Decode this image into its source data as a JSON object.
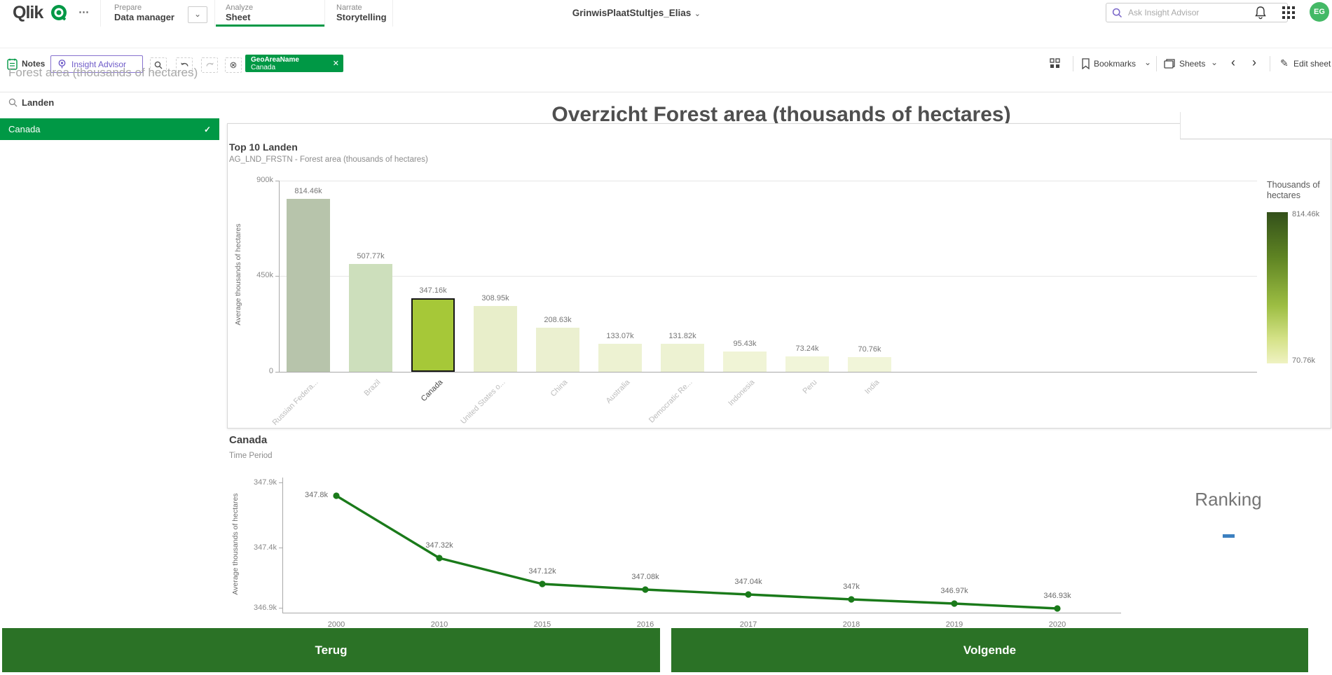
{
  "topbar": {
    "logo": "Qlik",
    "nav": [
      {
        "section": "Prepare",
        "item": "Data manager"
      },
      {
        "section": "Analyze",
        "item": "Sheet"
      },
      {
        "section": "Narrate",
        "item": "Storytelling"
      }
    ],
    "app_title": "GrinwisPlaatStultjes_Elias",
    "search_placeholder": "Ask Insight Advisor",
    "avatar_initials": "EG"
  },
  "toolbar": {
    "notes": "Notes",
    "insight_advisor": "Insight Advisor",
    "chip": {
      "field": "GeoAreaName",
      "value": "Canada"
    },
    "bookmarks": "Bookmarks",
    "sheets": "Sheets",
    "edit_sheet": "Edit sheet"
  },
  "icons": {
    "more": "⋯",
    "chevron_down": "⌄",
    "chevron_left": "‹",
    "chevron_right": "›",
    "close": "✕",
    "check": "✓",
    "clear": "⊗",
    "pencil": "✎"
  },
  "page_title": "Forest area (thousands of hectares)",
  "sheet_title": "Overzicht Forest area (thousands of hectares)",
  "sidebar": {
    "filter_label": "Landen",
    "selected_value": "Canada"
  },
  "chart_data": [
    {
      "type": "bar",
      "title": "Top 10 Landen",
      "subtitle": "AG_LND_FRSTN - Forest area (thousands of hectares)",
      "ylabel": "Average thousands of hectares",
      "ylim": [
        0,
        900000
      ],
      "yticks": [
        "900k",
        "450k",
        "0"
      ],
      "categories": [
        "Russian Federa...",
        "Brazil",
        "Canada",
        "United States o...",
        "China",
        "Australia",
        "Democratic Re...",
        "Indonesia",
        "Peru",
        "India"
      ],
      "values": [
        814460,
        507770,
        347160,
        308950,
        208630,
        133070,
        131820,
        95430,
        73240,
        70760
      ],
      "labels": [
        "814.46k",
        "507.77k",
        "347.16k",
        "308.95k",
        "208.63k",
        "133.07k",
        "131.82k",
        "95.43k",
        "73.24k",
        "70.76k"
      ],
      "selected_index": 2,
      "bar_colors": [
        "#b7c4ab",
        "#cddfbc",
        "#a6c838",
        "#e8eeca",
        "#ebf0d0",
        "#edf2d2",
        "#edf2d2",
        "#f0f4d6",
        "#f1f5d9",
        "#f1f5d9"
      ],
      "legend": {
        "title": "Thousands of hectares",
        "max_label": "814.46k",
        "min_label": "70.76k"
      }
    },
    {
      "type": "line",
      "title": "Canada",
      "subtitle": "Time Period",
      "ylabel": "Average thousands of hectares",
      "yticks": [
        "347.9k",
        "347.4k",
        "346.9k"
      ],
      "x": [
        "2000",
        "2010",
        "2015",
        "2016",
        "2017",
        "2018",
        "2019",
        "2020"
      ],
      "values": [
        347800,
        347320,
        347120,
        347080,
        347040,
        347000,
        346970,
        346930
      ],
      "labels": [
        "347.8k",
        "347.32k",
        "347.12k",
        "347.08k",
        "347.04k",
        "347k",
        "346.97k",
        "346.93k"
      ],
      "line_color": "#1a7a1a"
    }
  ],
  "ranking_title": "Ranking",
  "footer": {
    "back": "Terug",
    "next": "Volgende"
  },
  "colors": {
    "accent_green": "#009845",
    "footer_green": "#2b7226",
    "confirm_green": "#29a329",
    "cancel_red": "#df4540",
    "avatar_green": "#44b966",
    "ranking_dash_blue": "#3c80c0",
    "selected_bar": "#a6c838"
  }
}
